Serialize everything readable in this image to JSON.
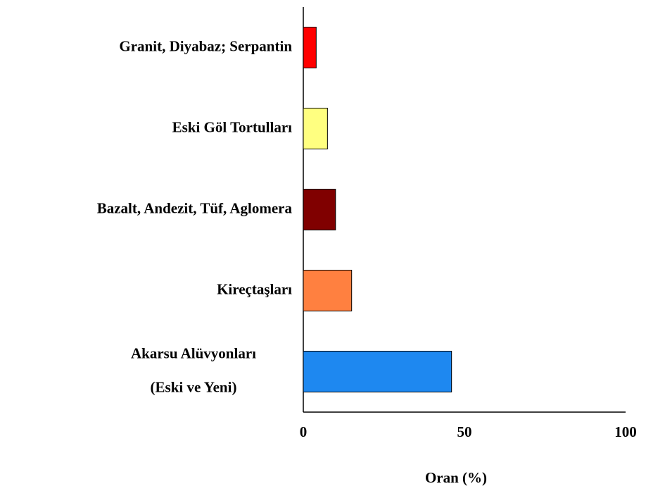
{
  "chart_data": {
    "type": "barh",
    "categories": [
      "Granit, Diyabaz; Serpantin",
      "Eski Göl Tortulları",
      "Bazalt, Andezit, Tüf, Aglomera",
      "Kireçtaşları",
      [
        "Akarsu Alüvyonları",
        "(Eski ve Yeni)"
      ]
    ],
    "values": [
      4,
      7.5,
      10,
      15,
      46
    ],
    "colors": [
      "#ff0000",
      "#ffff80",
      "#800000",
      "#ff8040",
      "#1e88f0"
    ],
    "xlabel": "Oran (%)",
    "xlim": [
      0,
      100
    ],
    "xticks": [
      0,
      50,
      100
    ],
    "grid": false
  }
}
